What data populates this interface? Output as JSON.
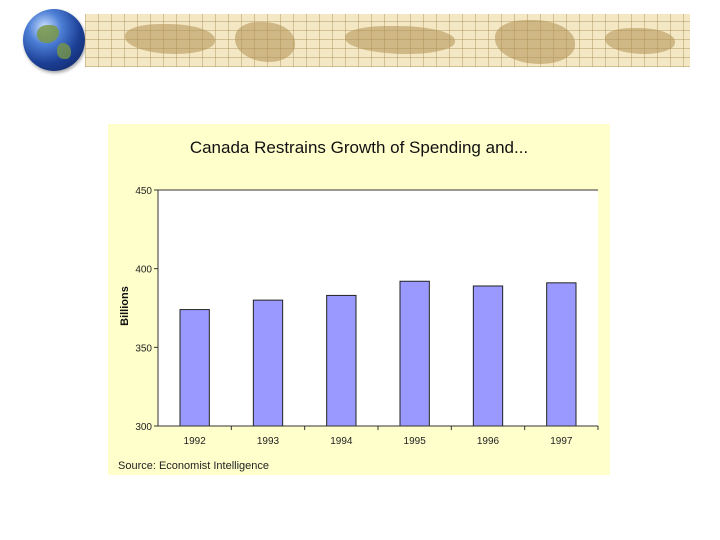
{
  "chart_data": {
    "type": "bar",
    "title": "Canada Restrains Growth of Spending and...",
    "xlabel": "",
    "ylabel": "Billions",
    "categories": [
      "1992",
      "1993",
      "1994",
      "1995",
      "1996",
      "1997"
    ],
    "values": [
      374,
      380,
      383,
      392,
      389,
      391
    ],
    "ylim": [
      300,
      450
    ],
    "yticks": [
      300,
      350,
      400,
      450
    ],
    "grid": false,
    "bar_color": "#9999ff",
    "source": "Source: Economist Intelligence"
  },
  "colors": {
    "panel_background": "#ffffcc",
    "banner": "#f3e7c4"
  }
}
